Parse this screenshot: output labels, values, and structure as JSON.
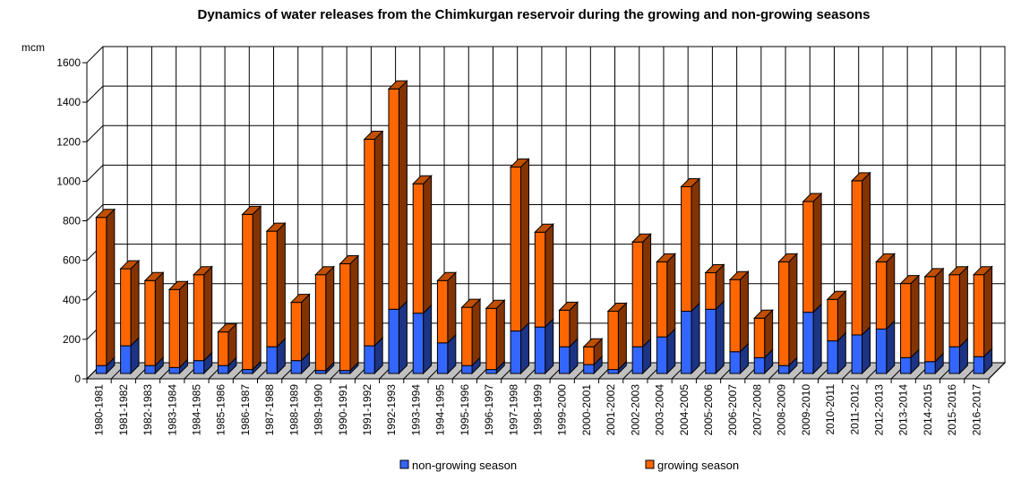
{
  "chart_data": {
    "type": "bar",
    "stacked": true,
    "style": "3d",
    "title": "Dynamics of water releases from the Chimkurgan reservoir during the growing and non-growing seasons",
    "ylabel": "mcm",
    "xlabel": "",
    "ylim": [
      0,
      1600
    ],
    "yticks": [
      "0",
      "200",
      "400",
      "600",
      "800",
      "1000",
      "1200",
      "1400",
      "1600"
    ],
    "grid": true,
    "legend_position": "bottom",
    "categories": [
      "1980-1981",
      "1981-1982",
      "1982-1983",
      "1983-1984",
      "1984-1985",
      "1985-1986",
      "1986-1987",
      "1987-1988",
      "1988-1989",
      "1989-1990",
      "1990-1991",
      "1991-1992",
      "1992-1993",
      "1993-1994",
      "1994-1995",
      "1995-1996",
      "1996-1997",
      "1997-1998",
      "1998-1999",
      "1999-2000",
      "2000-2001",
      "2001-2002",
      "2002-2003",
      "2003-2004",
      "2004-2005",
      "2005-2006",
      "2006-2007",
      "2007-2008",
      "2008-2009",
      "2009-2010",
      "2010-2011",
      "2011-2012",
      "2012-2013",
      "2013-2014",
      "2014-2015",
      "2015-2016",
      "2016-2017"
    ],
    "series": [
      {
        "name": "non-growing season",
        "color": "#3366ff",
        "side_color": "#1c3483",
        "values": [
          40,
          140,
          40,
          30,
          65,
          40,
          20,
          135,
          65,
          15,
          15,
          140,
          325,
          305,
          155,
          40,
          20,
          215,
          235,
          135,
          45,
          20,
          135,
          185,
          315,
          325,
          110,
          80,
          40,
          310,
          165,
          195,
          225,
          80,
          60,
          135,
          85
        ]
      },
      {
        "name": "growing season",
        "color": "#ff6600",
        "side_color": "#833300",
        "top_color": "#c04f00",
        "values": [
          750,
          390,
          430,
          395,
          435,
          170,
          785,
          585,
          295,
          485,
          540,
          1045,
          1115,
          655,
          315,
          295,
          310,
          830,
          480,
          185,
          90,
          295,
          530,
          380,
          630,
          185,
          365,
          200,
          525,
          560,
          210,
          780,
          340,
          375,
          430,
          365,
          415
        ]
      }
    ]
  },
  "colors": {
    "floor": "#c0c0c0",
    "grid": "#000000",
    "background": "#ffffff"
  }
}
